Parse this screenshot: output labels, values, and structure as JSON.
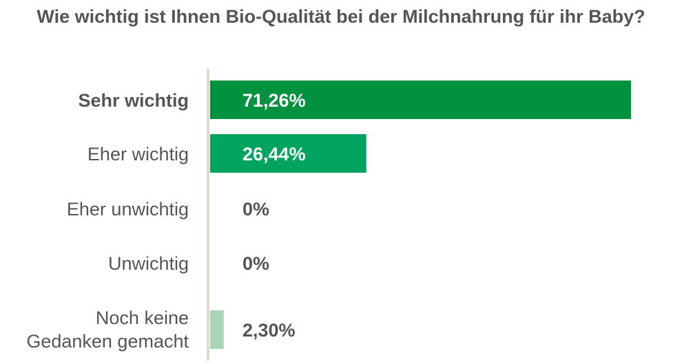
{
  "chart_data": {
    "type": "bar",
    "orientation": "horizontal",
    "title": "Wie wichtig ist Ihnen Bio-Qualität bei der Milchnahrung für ihr Baby?",
    "categories": [
      "Sehr wichtig",
      "Eher wichtig",
      "Eher unwichtig",
      "Unwichtig",
      "Noch keine Gedanken gemacht"
    ],
    "values": [
      71.26,
      26.44,
      0,
      0,
      2.3
    ],
    "value_labels": [
      "71,26%",
      "26,44%",
      "0%",
      "0%",
      "2,30%"
    ],
    "bar_colors": [
      "#00923f",
      "#00a45f",
      "#00a45f",
      "#00a45f",
      "#a8d5b3"
    ],
    "axis_color": "#e3d9cc",
    "grid": false,
    "legend": "none"
  }
}
